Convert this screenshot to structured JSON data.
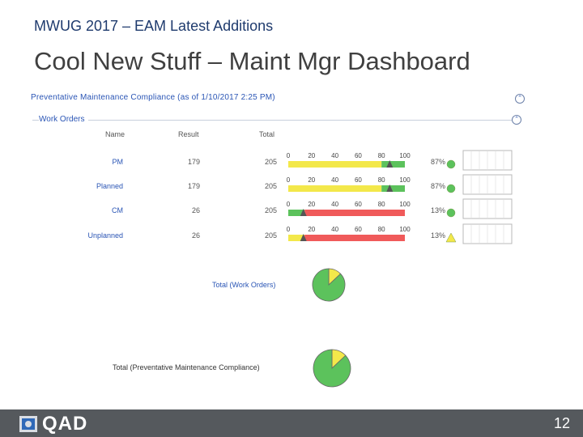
{
  "slide": {
    "subtitle": "MWUG 2017 – EAM Latest Additions",
    "title": "Cool New Stuff – Maint Mgr Dashboard",
    "page_number": "12"
  },
  "footer": {
    "logo_text": "QAD"
  },
  "panel": {
    "title": "Preventative Maintenance Compliance (as of 1/10/2017 2:25 PM)",
    "section": "Work Orders",
    "columns": {
      "name": "Name",
      "result": "Result",
      "total": "Total"
    }
  },
  "colors": {
    "green": "#5cc25c",
    "yellow": "#f3e84a",
    "red": "#f05a5a",
    "marker": "#555555"
  },
  "rows": [
    {
      "name": "PM",
      "result": "179",
      "total": "205",
      "percent_label": "87%",
      "value": 87,
      "status": "green"
    },
    {
      "name": "Planned",
      "result": "179",
      "total": "205",
      "percent_label": "87%",
      "value": 87,
      "status": "green"
    },
    {
      "name": "CM",
      "result": "26",
      "total": "205",
      "percent_label": "13%",
      "value": 13,
      "status": "green"
    },
    {
      "name": "Unplanned",
      "result": "26",
      "total": "205",
      "percent_label": "13%",
      "value": 13,
      "status": "yellow"
    }
  ],
  "gauge_ticks": [
    "0",
    "20",
    "40",
    "60",
    "80",
    "100"
  ],
  "chart_data": [
    {
      "type": "pie",
      "title": "Total (Work Orders)",
      "slices": [
        {
          "value": 87,
          "color": "#5cc25c"
        },
        {
          "value": 13,
          "color": "#f3e84a"
        }
      ]
    },
    {
      "type": "pie",
      "title": "Total (Preventative Maintenance Compliance)",
      "slices": [
        {
          "value": 87,
          "color": "#5cc25c"
        },
        {
          "value": 13,
          "color": "#f3e84a"
        }
      ]
    }
  ]
}
